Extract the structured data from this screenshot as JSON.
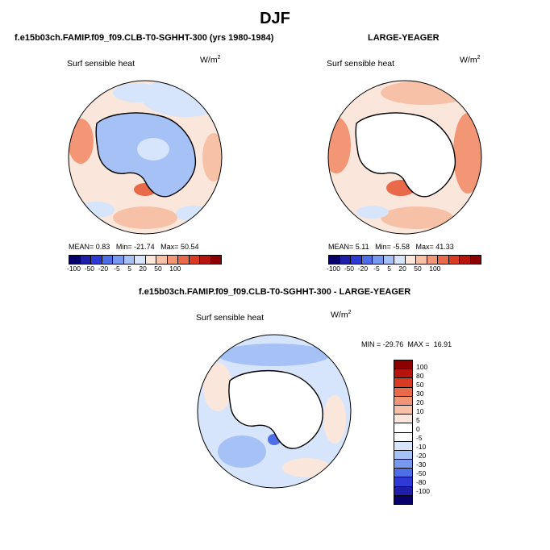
{
  "title": "DJF",
  "colors": {
    "diverging_blue_to_red": [
      "#08006b",
      "#1e1eaa",
      "#2d3ad6",
      "#4e6ee8",
      "#7799ef",
      "#a6c1f5",
      "#d6e5fb",
      "#fbe6dc",
      "#f7c1a8",
      "#f29676",
      "#e86a4a",
      "#d93a22",
      "#b8140e",
      "#8c0000"
    ],
    "continent": "#ffffff",
    "coastline": "#000000"
  },
  "chart_data": [
    {
      "type": "heatmap",
      "title": "f.e15b03ch.FAMIP.f09_f09.CLB-T0-SGHHT-300 (yrs 1980-1984)",
      "variable": "Surf sensible heat",
      "units": "W/m",
      "units_exp": "2",
      "projection": "south polar stereographic",
      "stats": {
        "mean_label": "MEAN=",
        "mean": "0.83",
        "min_label": "Min=",
        "min": "-21.74",
        "max_label": "Max=",
        "max": "50.54"
      },
      "colorbar_levels": [
        "-100",
        "-50",
        "-20",
        "-5",
        "5",
        "20",
        "50",
        "100"
      ]
    },
    {
      "type": "heatmap",
      "title": "LARGE-YEAGER",
      "variable": "Surf sensible heat",
      "units": "W/m",
      "units_exp": "2",
      "projection": "south polar stereographic",
      "stats": {
        "mean_label": "MEAN=",
        "mean": "5.11",
        "min_label": "Min=",
        "min": "-5.58",
        "max_label": "Max=",
        "max": "41.33"
      },
      "colorbar_levels": [
        "-100",
        "-50",
        "-20",
        "-5",
        "5",
        "20",
        "50",
        "100"
      ]
    },
    {
      "type": "heatmap",
      "title": "f.e15b03ch.FAMIP.f09_f09.CLB-T0-SGHHT-300 - LARGE-YEAGER",
      "variable": "Surf sensible heat",
      "units": "W/m",
      "units_exp": "2",
      "projection": "south polar stereographic",
      "stats": {
        "min_label": "MIN =",
        "min": "-29.76",
        "max_label": "MAX =",
        "max": "16.91"
      },
      "colorbar_levels": [
        "100",
        "80",
        "50",
        "30",
        "20",
        "10",
        "5",
        "0",
        "-5",
        "-10",
        "-20",
        "-30",
        "-50",
        "-80",
        "-100"
      ]
    }
  ]
}
